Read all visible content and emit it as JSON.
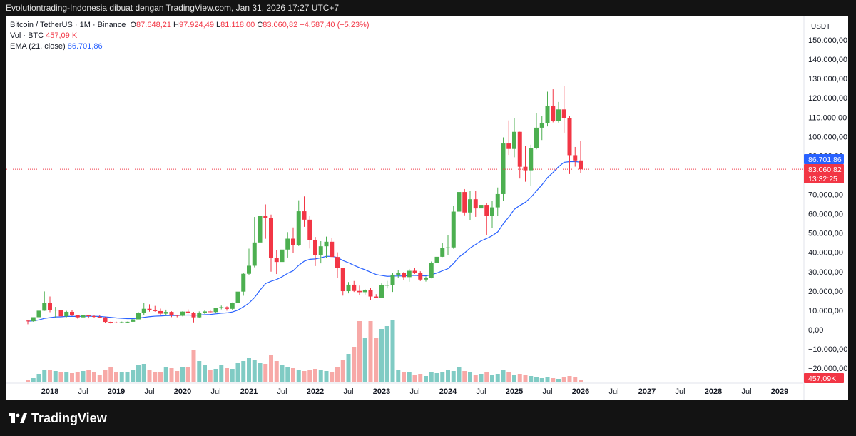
{
  "header": {
    "text": "Evolutiontrading-Indonesia dibuat dengan TradingView.com, Jan 31, 2026 17:27 UTC+7"
  },
  "legend": {
    "symbol": "Bitcoin / TetherUS · 1M · Binance",
    "o_label": "O",
    "o_value": "87.648,21",
    "h_label": "H",
    "h_value": "97.924,49",
    "l_label": "L",
    "l_value": "81.118,00",
    "c_label": "C",
    "c_value": "83.060,82",
    "change": "−4.587,40 (−5,23%)",
    "vol_label": "Vol · BTC",
    "vol_value": "457,09 K",
    "ema_label": "EMA (21, close)",
    "ema_value": "86.701,86"
  },
  "price_axis": {
    "currency": "USDT",
    "ticks": [
      "150.000,00",
      "140.000,00",
      "130.000,00",
      "120.000,00",
      "110.000,00",
      "100.000,00",
      "90.000,00",
      "80.000,00",
      "70.000,00",
      "60.000,00",
      "50.000,00",
      "40.000,00",
      "30.000,00",
      "20.000,00",
      "10.000,00",
      "0,00",
      "−10.000,00",
      "−20.000,00"
    ],
    "ema_tag": "86.701,86",
    "price_tag": "83.060,82",
    "countdown_tag": "13:32:25",
    "volume_tag": "457,09K"
  },
  "time_axis": {
    "ticks": [
      "2018",
      "Jul",
      "2019",
      "Jul",
      "2020",
      "Jul",
      "2021",
      "Jul",
      "2022",
      "Jul",
      "2023",
      "Jul",
      "2024",
      "Jul",
      "2025",
      "Jul",
      "2026",
      "Jul",
      "2027",
      "Jul",
      "2028",
      "Jul",
      "2029"
    ]
  },
  "brand": {
    "name": "TradingView"
  },
  "colors": {
    "up": "#4caf50",
    "down": "#f23645",
    "ema": "#2962ff",
    "vol_up": "#80cbc4",
    "vol_down": "#f7a9a7"
  },
  "chart_data": {
    "type": "candlestick",
    "interval": "1M",
    "symbol": "BTCUSDT",
    "price_range": [
      -25000,
      155000
    ],
    "months": [
      {
        "t": "2017-09",
        "o": 4690,
        "h": 4940,
        "l": 2817,
        "c": 4378,
        "v": 4
      },
      {
        "t": "2017-10",
        "o": 4378,
        "h": 6470,
        "l": 4110,
        "c": 6463,
        "v": 6
      },
      {
        "t": "2017-11",
        "o": 6463,
        "h": 11300,
        "l": 5325,
        "c": 9838,
        "v": 12
      },
      {
        "t": "2017-12",
        "o": 9838,
        "h": 19798,
        "l": 9722,
        "c": 13716,
        "v": 18
      },
      {
        "t": "2018-01",
        "o": 13716,
        "h": 17176,
        "l": 9035,
        "c": 10285,
        "v": 17
      },
      {
        "t": "2018-02",
        "o": 10285,
        "h": 11786,
        "l": 5968,
        "c": 10327,
        "v": 16
      },
      {
        "t": "2018-03",
        "o": 10327,
        "h": 11710,
        "l": 6600,
        "c": 6923,
        "v": 15
      },
      {
        "t": "2018-04",
        "o": 6923,
        "h": 9759,
        "l": 6430,
        "c": 9247,
        "v": 14
      },
      {
        "t": "2018-05",
        "o": 9247,
        "h": 10020,
        "l": 7034,
        "c": 7485,
        "v": 13
      },
      {
        "t": "2018-06",
        "o": 7485,
        "h": 7760,
        "l": 5750,
        "c": 6391,
        "v": 14
      },
      {
        "t": "2018-07",
        "o": 6391,
        "h": 8490,
        "l": 6070,
        "c": 7730,
        "v": 16
      },
      {
        "t": "2018-08",
        "o": 7730,
        "h": 7770,
        "l": 5880,
        "c": 7025,
        "v": 18
      },
      {
        "t": "2018-09",
        "o": 7025,
        "h": 7410,
        "l": 6100,
        "c": 6626,
        "v": 14
      },
      {
        "t": "2018-10",
        "o": 6626,
        "h": 7680,
        "l": 6200,
        "c": 6371,
        "v": 11
      },
      {
        "t": "2018-11",
        "o": 6371,
        "h": 6600,
        "l": 3652,
        "c": 4041,
        "v": 18
      },
      {
        "t": "2018-12",
        "o": 4041,
        "h": 4310,
        "l": 3156,
        "c": 3742,
        "v": 21
      },
      {
        "t": "2019-01",
        "o": 3742,
        "h": 4140,
        "l": 3350,
        "c": 3458,
        "v": 14
      },
      {
        "t": "2019-02",
        "o": 3458,
        "h": 4200,
        "l": 3370,
        "c": 3855,
        "v": 15
      },
      {
        "t": "2019-03",
        "o": 3855,
        "h": 4140,
        "l": 3690,
        "c": 4105,
        "v": 14
      },
      {
        "t": "2019-04",
        "o": 4105,
        "h": 5600,
        "l": 4040,
        "c": 5350,
        "v": 18
      },
      {
        "t": "2019-05",
        "o": 5350,
        "h": 9080,
        "l": 5340,
        "c": 8574,
        "v": 24
      },
      {
        "t": "2019-06",
        "o": 8574,
        "h": 13970,
        "l": 7450,
        "c": 10817,
        "v": 26
      },
      {
        "t": "2019-07",
        "o": 10817,
        "h": 13183,
        "l": 9320,
        "c": 10085,
        "v": 18
      },
      {
        "t": "2019-08",
        "o": 10085,
        "h": 12325,
        "l": 9320,
        "c": 9630,
        "v": 15
      },
      {
        "t": "2019-09",
        "o": 9630,
        "h": 10905,
        "l": 7710,
        "c": 8293,
        "v": 14
      },
      {
        "t": "2019-10",
        "o": 8293,
        "h": 10370,
        "l": 7300,
        "c": 9199,
        "v": 22
      },
      {
        "t": "2019-11",
        "o": 9199,
        "h": 9505,
        "l": 6515,
        "c": 7546,
        "v": 20
      },
      {
        "t": "2019-12",
        "o": 7546,
        "h": 7750,
        "l": 6435,
        "c": 7193,
        "v": 16
      },
      {
        "t": "2020-01",
        "o": 7193,
        "h": 9578,
        "l": 6871,
        "c": 9352,
        "v": 22
      },
      {
        "t": "2020-02",
        "o": 9352,
        "h": 10500,
        "l": 8450,
        "c": 8523,
        "v": 21
      },
      {
        "t": "2020-03",
        "o": 8523,
        "h": 9190,
        "l": 3782,
        "c": 6410,
        "v": 45
      },
      {
        "t": "2020-04",
        "o": 6410,
        "h": 9460,
        "l": 6150,
        "c": 8621,
        "v": 30
      },
      {
        "t": "2020-05",
        "o": 8621,
        "h": 10070,
        "l": 8117,
        "c": 9448,
        "v": 24
      },
      {
        "t": "2020-06",
        "o": 9448,
        "h": 10380,
        "l": 8833,
        "c": 9138,
        "v": 17
      },
      {
        "t": "2020-07",
        "o": 9138,
        "h": 11444,
        "l": 8893,
        "c": 11335,
        "v": 19
      },
      {
        "t": "2020-08",
        "o": 11335,
        "h": 12468,
        "l": 10518,
        "c": 11650,
        "v": 24
      },
      {
        "t": "2020-09",
        "o": 11650,
        "h": 12050,
        "l": 9825,
        "c": 10776,
        "v": 20
      },
      {
        "t": "2020-10",
        "o": 10776,
        "h": 14100,
        "l": 10374,
        "c": 13791,
        "v": 19
      },
      {
        "t": "2020-11",
        "o": 13791,
        "h": 19863,
        "l": 13195,
        "c": 19695,
        "v": 28
      },
      {
        "t": "2020-12",
        "o": 19695,
        "h": 29300,
        "l": 17572,
        "c": 28923,
        "v": 30
      },
      {
        "t": "2021-01",
        "o": 28923,
        "h": 41950,
        "l": 28130,
        "c": 33092,
        "v": 35
      },
      {
        "t": "2021-02",
        "o": 33092,
        "h": 58352,
        "l": 32296,
        "c": 45135,
        "v": 32
      },
      {
        "t": "2021-03",
        "o": 45135,
        "h": 61844,
        "l": 44950,
        "c": 58740,
        "v": 28
      },
      {
        "t": "2021-04",
        "o": 58740,
        "h": 64854,
        "l": 47044,
        "c": 57694,
        "v": 26
      },
      {
        "t": "2021-05",
        "o": 57694,
        "h": 59592,
        "l": 30000,
        "c": 37253,
        "v": 38
      },
      {
        "t": "2021-06",
        "o": 37253,
        "h": 41330,
        "l": 28805,
        "c": 35045,
        "v": 30
      },
      {
        "t": "2021-07",
        "o": 35045,
        "h": 42448,
        "l": 29278,
        "c": 41461,
        "v": 24
      },
      {
        "t": "2021-08",
        "o": 41461,
        "h": 50500,
        "l": 37332,
        "c": 47100,
        "v": 21
      },
      {
        "t": "2021-09",
        "o": 47100,
        "h": 52920,
        "l": 39600,
        "c": 43824,
        "v": 20
      },
      {
        "t": "2021-10",
        "o": 43824,
        "h": 66999,
        "l": 43283,
        "c": 61299,
        "v": 18
      },
      {
        "t": "2021-11",
        "o": 61299,
        "h": 69000,
        "l": 53256,
        "c": 56950,
        "v": 16
      },
      {
        "t": "2021-12",
        "o": 56950,
        "h": 59053,
        "l": 42000,
        "c": 46216,
        "v": 17
      },
      {
        "t": "2022-01",
        "o": 46216,
        "h": 47990,
        "l": 32917,
        "c": 38466,
        "v": 19
      },
      {
        "t": "2022-02",
        "o": 38466,
        "h": 45821,
        "l": 34322,
        "c": 43160,
        "v": 17
      },
      {
        "t": "2022-03",
        "o": 43160,
        "h": 48189,
        "l": 37155,
        "c": 45510,
        "v": 16
      },
      {
        "t": "2022-04",
        "o": 45510,
        "h": 47444,
        "l": 37578,
        "c": 37630,
        "v": 15
      },
      {
        "t": "2022-05",
        "o": 37630,
        "h": 40023,
        "l": 26700,
        "c": 31801,
        "v": 22
      },
      {
        "t": "2022-06",
        "o": 31801,
        "h": 31986,
        "l": 17622,
        "c": 19942,
        "v": 32
      },
      {
        "t": "2022-07",
        "o": 19942,
        "h": 24668,
        "l": 18781,
        "c": 23293,
        "v": 40
      },
      {
        "t": "2022-08",
        "o": 23293,
        "h": 25211,
        "l": 19520,
        "c": 20050,
        "v": 50
      },
      {
        "t": "2022-09",
        "o": 20050,
        "h": 22800,
        "l": 18125,
        "c": 19423,
        "v": 86
      },
      {
        "t": "2022-10",
        "o": 19423,
        "h": 20988,
        "l": 18190,
        "c": 20491,
        "v": 62
      },
      {
        "t": "2022-11",
        "o": 20491,
        "h": 21480,
        "l": 15476,
        "c": 17164,
        "v": 86
      },
      {
        "t": "2022-12",
        "o": 17164,
        "h": 18387,
        "l": 16256,
        "c": 16542,
        "v": 62
      },
      {
        "t": "2023-01",
        "o": 16542,
        "h": 23960,
        "l": 16499,
        "c": 23125,
        "v": 75
      },
      {
        "t": "2023-02",
        "o": 23125,
        "h": 25250,
        "l": 21351,
        "c": 23142,
        "v": 79
      },
      {
        "t": "2023-03",
        "o": 23142,
        "h": 29185,
        "l": 19549,
        "c": 28465,
        "v": 87
      },
      {
        "t": "2023-04",
        "o": 28465,
        "h": 31000,
        "l": 26942,
        "c": 29233,
        "v": 18
      },
      {
        "t": "2023-05",
        "o": 29233,
        "h": 29820,
        "l": 25811,
        "c": 27210,
        "v": 15
      },
      {
        "t": "2023-06",
        "o": 27210,
        "h": 31431,
        "l": 24800,
        "c": 30472,
        "v": 14
      },
      {
        "t": "2023-07",
        "o": 30472,
        "h": 31804,
        "l": 28861,
        "c": 29232,
        "v": 11
      },
      {
        "t": "2023-08",
        "o": 29232,
        "h": 30244,
        "l": 25166,
        "c": 25941,
        "v": 12
      },
      {
        "t": "2023-09",
        "o": 25941,
        "h": 27483,
        "l": 24901,
        "c": 26962,
        "v": 9
      },
      {
        "t": "2023-10",
        "o": 26962,
        "h": 35280,
        "l": 26538,
        "c": 34640,
        "v": 14
      },
      {
        "t": "2023-11",
        "o": 34640,
        "h": 38450,
        "l": 34097,
        "c": 37723,
        "v": 13
      },
      {
        "t": "2023-12",
        "o": 37723,
        "h": 44700,
        "l": 37615,
        "c": 42283,
        "v": 15
      },
      {
        "t": "2024-01",
        "o": 42283,
        "h": 48969,
        "l": 38555,
        "c": 42580,
        "v": 17
      },
      {
        "t": "2024-02",
        "o": 42580,
        "h": 63913,
        "l": 41884,
        "c": 61131,
        "v": 16
      },
      {
        "t": "2024-03",
        "o": 61131,
        "h": 73777,
        "l": 59005,
        "c": 71280,
        "v": 21
      },
      {
        "t": "2024-04",
        "o": 71280,
        "h": 72797,
        "l": 59191,
        "c": 60672,
        "v": 16
      },
      {
        "t": "2024-05",
        "o": 60672,
        "h": 71980,
        "l": 56552,
        "c": 67540,
        "v": 14
      },
      {
        "t": "2024-06",
        "o": 67540,
        "h": 71997,
        "l": 58402,
        "c": 62772,
        "v": 10
      },
      {
        "t": "2024-07",
        "o": 62772,
        "h": 70079,
        "l": 53485,
        "c": 64628,
        "v": 12
      },
      {
        "t": "2024-08",
        "o": 64628,
        "h": 65659,
        "l": 49000,
        "c": 58973,
        "v": 15
      },
      {
        "t": "2024-09",
        "o": 58973,
        "h": 66498,
        "l": 52550,
        "c": 63327,
        "v": 10
      },
      {
        "t": "2024-10",
        "o": 63327,
        "h": 73620,
        "l": 58946,
        "c": 70215,
        "v": 12
      },
      {
        "t": "2024-11",
        "o": 70215,
        "h": 99588,
        "l": 66835,
        "c": 96407,
        "v": 17
      },
      {
        "t": "2024-12",
        "o": 96407,
        "h": 108353,
        "l": 90500,
        "c": 93576,
        "v": 14
      },
      {
        "t": "2025-01",
        "o": 93576,
        "h": 109588,
        "l": 89256,
        "c": 102429,
        "v": 11
      },
      {
        "t": "2025-02",
        "o": 102429,
        "h": 102500,
        "l": 78258,
        "c": 84349,
        "v": 12
      },
      {
        "t": "2025-03",
        "o": 84349,
        "h": 95000,
        "l": 76606,
        "c": 82548,
        "v": 10
      },
      {
        "t": "2025-04",
        "o": 82548,
        "h": 95758,
        "l": 74508,
        "c": 94172,
        "v": 9
      },
      {
        "t": "2025-05",
        "o": 94172,
        "h": 111980,
        "l": 93377,
        "c": 104591,
        "v": 8
      },
      {
        "t": "2025-06",
        "o": 104591,
        "h": 110530,
        "l": 98200,
        "c": 107135,
        "v": 6
      },
      {
        "t": "2025-07",
        "o": 107135,
        "h": 123218,
        "l": 105271,
        "c": 115764,
        "v": 7
      },
      {
        "t": "2025-08",
        "o": 115764,
        "h": 124474,
        "l": 107350,
        "c": 108246,
        "v": 6
      },
      {
        "t": "2025-09",
        "o": 108246,
        "h": 117900,
        "l": 107255,
        "c": 114049,
        "v": 5
      },
      {
        "t": "2025-10",
        "o": 114049,
        "h": 126199,
        "l": 102000,
        "c": 109608,
        "v": 8
      },
      {
        "t": "2025-11",
        "o": 109608,
        "h": 110600,
        "l": 80600,
        "c": 90360,
        "v": 9
      },
      {
        "t": "2025-12",
        "o": 90360,
        "h": 94600,
        "l": 84400,
        "c": 87648,
        "v": 7
      },
      {
        "t": "2026-01",
        "o": 87648,
        "h": 97924,
        "l": 81118,
        "c": 83061,
        "v": 4
      }
    ]
  }
}
